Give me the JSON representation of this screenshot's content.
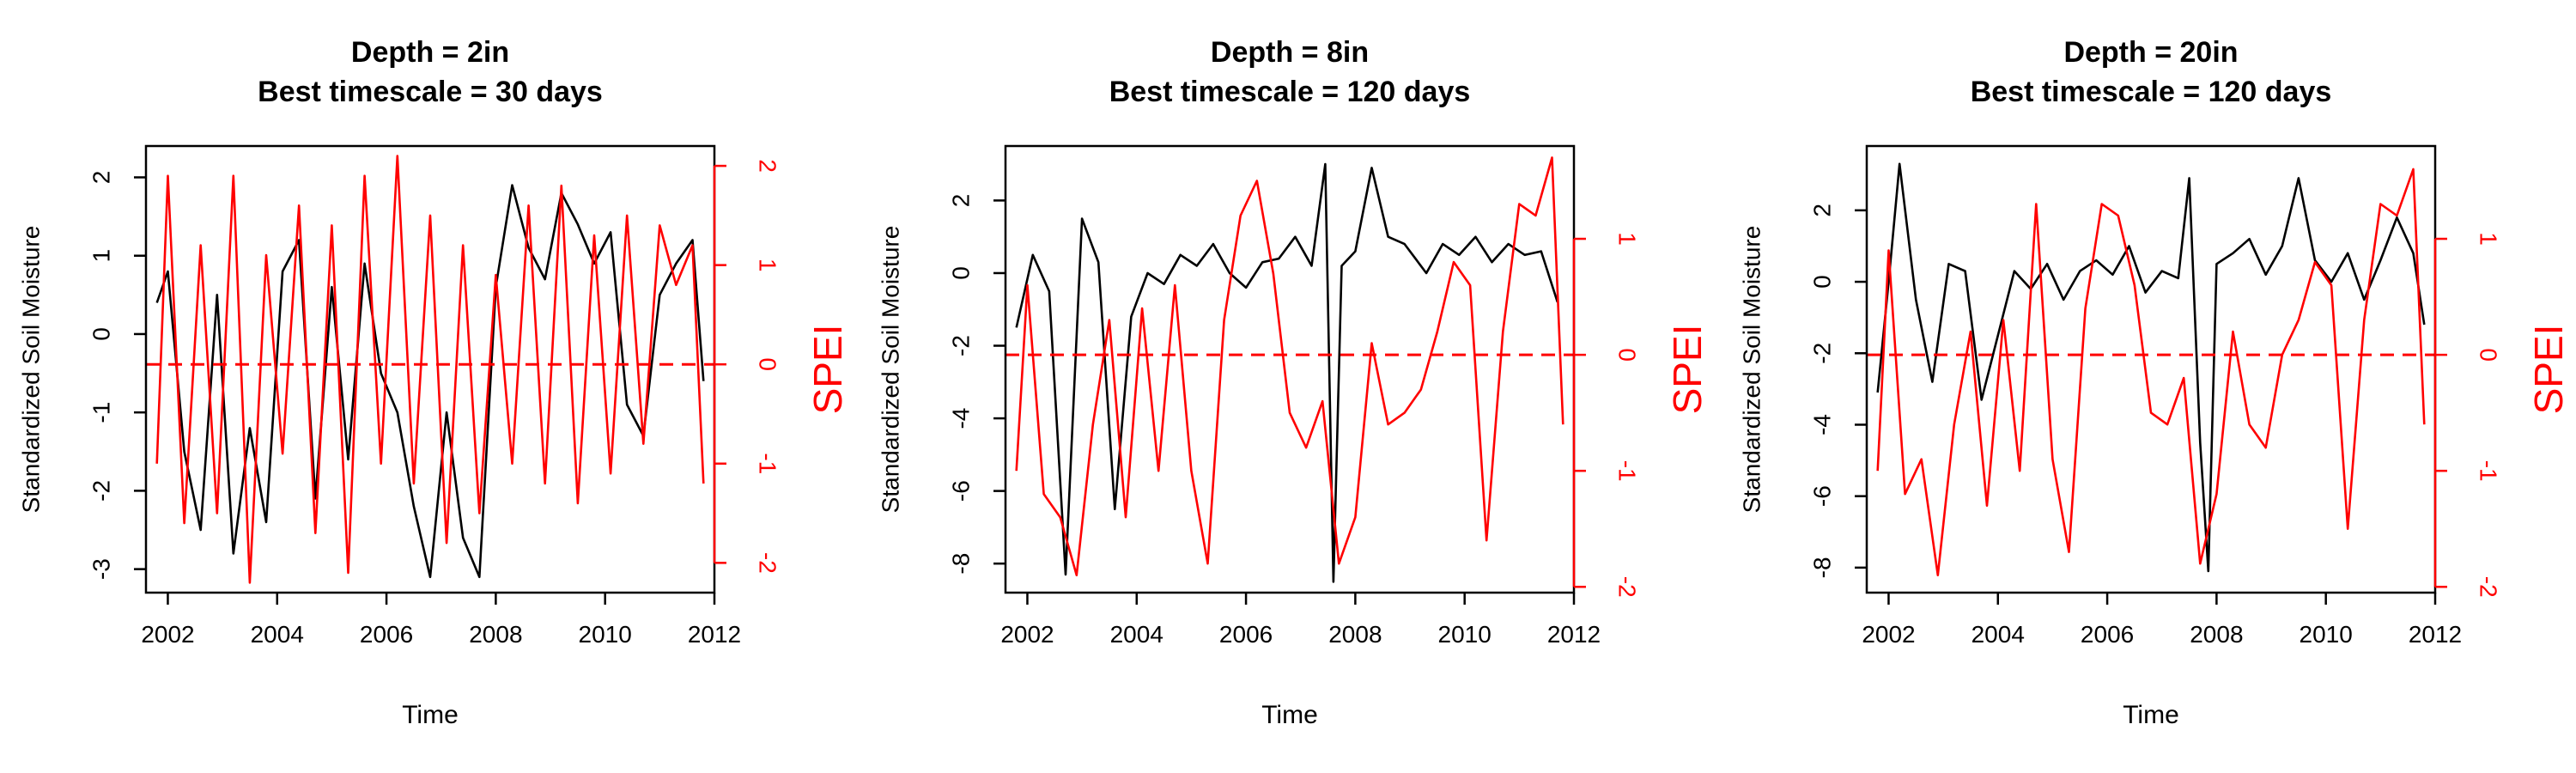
{
  "colors": {
    "soil": "#000000",
    "spei": "#ff0000"
  },
  "chart_data": [
    {
      "type": "line",
      "title": "Depth = 2in",
      "subtitle": "Best timescale = 30 days",
      "xlabel": "Time",
      "ylabel": "Standardized Soil Moisture",
      "y2label": "SPEI",
      "xticks": [
        "2002",
        "2004",
        "2006",
        "2008",
        "2010",
        "2012"
      ],
      "xlim": [
        2001.6,
        2012.0
      ],
      "yticks": [
        2,
        1,
        0,
        -1,
        -2,
        -3
      ],
      "ylim": [
        -3.3,
        2.4
      ],
      "y2ticks": [
        2,
        1,
        0,
        -1,
        -2
      ],
      "y2lim": [
        -2.3,
        2.2
      ],
      "reference_line": {
        "axis": "y2",
        "value": 0,
        "style": "dashed"
      },
      "series": [
        {
          "axis": "y",
          "color": "#000000",
          "x": [
            2001.8,
            2002.0,
            2002.3,
            2002.6,
            2002.9,
            2003.2,
            2003.5,
            2003.8,
            2004.1,
            2004.4,
            2004.7,
            2005.0,
            2005.3,
            2005.6,
            2005.9,
            2006.2,
            2006.5,
            2006.8,
            2007.1,
            2007.4,
            2007.7,
            2008.0,
            2008.3,
            2008.6,
            2008.9,
            2009.2,
            2009.5,
            2009.8,
            2010.1,
            2010.4,
            2010.7,
            2011.0,
            2011.3,
            2011.6,
            2011.8
          ],
          "y": [
            0.4,
            0.8,
            -1.5,
            -2.5,
            0.5,
            -2.8,
            -1.2,
            -2.4,
            0.8,
            1.2,
            -2.1,
            0.6,
            -1.6,
            0.9,
            -0.5,
            -1.0,
            -2.2,
            -3.1,
            -1.0,
            -2.6,
            -3.1,
            0.6,
            1.9,
            1.1,
            0.7,
            1.8,
            1.4,
            0.9,
            1.3,
            -0.9,
            -1.3,
            0.5,
            0.9,
            1.2,
            -0.6
          ]
        },
        {
          "axis": "y2",
          "color": "#ff0000",
          "x": [
            2001.8,
            2002.0,
            2002.3,
            2002.6,
            2002.9,
            2003.2,
            2003.5,
            2003.8,
            2004.1,
            2004.4,
            2004.7,
            2005.0,
            2005.3,
            2005.6,
            2005.9,
            2006.2,
            2006.5,
            2006.8,
            2007.1,
            2007.4,
            2007.7,
            2008.0,
            2008.3,
            2008.6,
            2008.9,
            2009.2,
            2009.5,
            2009.8,
            2010.1,
            2010.4,
            2010.7,
            2011.0,
            2011.3,
            2011.6,
            2011.8
          ],
          "y": [
            -1.0,
            1.9,
            -1.6,
            1.2,
            -1.5,
            1.9,
            -2.2,
            1.1,
            -0.9,
            1.6,
            -1.7,
            1.4,
            -2.1,
            1.9,
            -1.0,
            2.1,
            -1.2,
            1.5,
            -1.8,
            1.2,
            -1.5,
            0.9,
            -1.0,
            1.6,
            -1.2,
            1.8,
            -1.4,
            1.3,
            -1.1,
            1.5,
            -0.8,
            1.4,
            0.8,
            1.2,
            -1.2
          ]
        }
      ]
    },
    {
      "type": "line",
      "title": "Depth = 8in",
      "subtitle": "Best timescale = 120 days",
      "xlabel": "Time",
      "ylabel": "Standardized Soil Moisture",
      "y2label": "SPEI",
      "xticks": [
        "2002",
        "2004",
        "2006",
        "2008",
        "2010",
        "2012"
      ],
      "xlim": [
        2001.6,
        2012.0
      ],
      "yticks": [
        2,
        0,
        -2,
        -4,
        -6,
        -8
      ],
      "ylim": [
        -8.8,
        3.5
      ],
      "y2ticks": [
        1,
        0,
        -1,
        -2
      ],
      "y2lim": [
        -2.05,
        1.8
      ],
      "reference_line": {
        "axis": "y2",
        "value": 0,
        "style": "dashed"
      },
      "series": [
        {
          "axis": "y",
          "color": "#000000",
          "x": [
            2001.8,
            2002.1,
            2002.4,
            2002.7,
            2003.0,
            2003.3,
            2003.6,
            2003.9,
            2004.2,
            2004.5,
            2004.8,
            2005.1,
            2005.4,
            2005.7,
            2006.0,
            2006.3,
            2006.6,
            2006.9,
            2007.2,
            2007.45,
            2007.6,
            2007.75,
            2008.0,
            2008.3,
            2008.6,
            2008.9,
            2009.3,
            2009.6,
            2009.9,
            2010.2,
            2010.5,
            2010.8,
            2011.1,
            2011.4,
            2011.7
          ],
          "y": [
            -1.5,
            0.5,
            -0.5,
            -8.3,
            1.5,
            0.3,
            -6.5,
            -1.2,
            0.0,
            -0.3,
            0.5,
            0.2,
            0.8,
            0.0,
            -0.4,
            0.3,
            0.4,
            1.0,
            0.2,
            3.0,
            -8.5,
            0.2,
            0.6,
            2.9,
            1.0,
            0.8,
            0.0,
            0.8,
            0.5,
            1.0,
            0.3,
            0.8,
            0.5,
            0.6,
            -0.8
          ]
        },
        {
          "axis": "y2",
          "color": "#ff0000",
          "x": [
            2001.8,
            2002.0,
            2002.3,
            2002.6,
            2002.9,
            2003.2,
            2003.5,
            2003.8,
            2004.1,
            2004.4,
            2004.7,
            2005.0,
            2005.3,
            2005.6,
            2005.9,
            2006.2,
            2006.5,
            2006.8,
            2007.1,
            2007.4,
            2007.7,
            2008.0,
            2008.3,
            2008.6,
            2008.9,
            2009.2,
            2009.5,
            2009.8,
            2010.1,
            2010.4,
            2010.7,
            2011.0,
            2011.3,
            2011.6,
            2011.8
          ],
          "y": [
            -1.0,
            0.6,
            -1.2,
            -1.4,
            -1.9,
            -0.6,
            0.3,
            -1.4,
            0.4,
            -1.0,
            0.6,
            -1.0,
            -1.8,
            0.3,
            1.2,
            1.5,
            0.7,
            -0.5,
            -0.8,
            -0.4,
            -1.8,
            -1.4,
            0.1,
            -0.6,
            -0.5,
            -0.3,
            0.2,
            0.8,
            0.6,
            -1.6,
            0.2,
            1.3,
            1.2,
            1.7,
            -0.6
          ]
        }
      ]
    },
    {
      "type": "line",
      "title": "Depth = 20in",
      "subtitle": "Best timescale = 120 days",
      "xlabel": "Time",
      "ylabel": "Standardized Soil Moisture",
      "y2label": "SPEI",
      "xticks": [
        "2002",
        "2004",
        "2006",
        "2008",
        "2010",
        "2012"
      ],
      "xlim": [
        2001.6,
        2012.0
      ],
      "yticks": [
        2,
        0,
        -2,
        -4,
        -6,
        -8
      ],
      "ylim": [
        -8.7,
        3.8
      ],
      "y2ticks": [
        1,
        0,
        -1,
        -2
      ],
      "y2lim": [
        -2.05,
        1.8
      ],
      "reference_line": {
        "axis": "y2",
        "value": 0,
        "style": "dashed"
      },
      "series": [
        {
          "axis": "y",
          "color": "#000000",
          "x": [
            2001.8,
            2002.0,
            2002.2,
            2002.5,
            2002.8,
            2003.1,
            2003.4,
            2003.7,
            2004.0,
            2004.3,
            2004.6,
            2004.9,
            2005.2,
            2005.5,
            2005.8,
            2006.1,
            2006.4,
            2006.7,
            2007.0,
            2007.3,
            2007.5,
            2007.7,
            2007.85,
            2008.0,
            2008.3,
            2008.6,
            2008.9,
            2009.2,
            2009.5,
            2009.8,
            2010.1,
            2010.4,
            2010.7,
            2011.0,
            2011.3,
            2011.6,
            2011.8
          ],
          "y": [
            -3.1,
            0.0,
            3.3,
            -0.5,
            -2.8,
            0.5,
            0.3,
            -3.3,
            -1.5,
            0.3,
            -0.2,
            0.5,
            -0.5,
            0.3,
            0.6,
            0.2,
            1.0,
            -0.3,
            0.3,
            0.1,
            2.9,
            -4.5,
            -8.1,
            0.5,
            0.8,
            1.2,
            0.2,
            1.0,
            2.9,
            0.6,
            0.0,
            0.8,
            -0.5,
            0.6,
            1.8,
            0.8,
            -1.2
          ]
        },
        {
          "axis": "y2",
          "color": "#ff0000",
          "x": [
            2001.8,
            2002.0,
            2002.3,
            2002.6,
            2002.9,
            2003.2,
            2003.5,
            2003.8,
            2004.1,
            2004.4,
            2004.7,
            2005.0,
            2005.3,
            2005.6,
            2005.9,
            2006.2,
            2006.5,
            2006.8,
            2007.1,
            2007.4,
            2007.7,
            2008.0,
            2008.3,
            2008.6,
            2008.9,
            2009.2,
            2009.5,
            2009.8,
            2010.1,
            2010.4,
            2010.7,
            2011.0,
            2011.3,
            2011.6,
            2011.8
          ],
          "y": [
            -1.0,
            0.9,
            -1.2,
            -0.9,
            -1.9,
            -0.6,
            0.2,
            -1.3,
            0.3,
            -1.0,
            1.3,
            -0.9,
            -1.7,
            0.4,
            1.3,
            1.2,
            0.6,
            -0.5,
            -0.6,
            -0.2,
            -1.8,
            -1.2,
            0.2,
            -0.6,
            -0.8,
            0.0,
            0.3,
            0.8,
            0.6,
            -1.5,
            0.3,
            1.3,
            1.2,
            1.6,
            -0.6
          ]
        }
      ]
    }
  ]
}
